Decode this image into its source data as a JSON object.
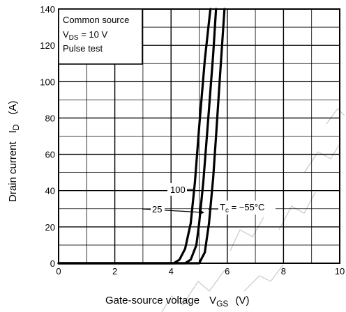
{
  "chart_data": {
    "type": "line",
    "xlabel_main": "Gate-source voltage",
    "xlabel_sym": "V",
    "xlabel_sub": "GS",
    "xlabel_unit": "(V)",
    "ylabel_main": "Drain current",
    "ylabel_sym": "I",
    "ylabel_sub": "D",
    "ylabel_unit": "(A)",
    "xlim": [
      0,
      10
    ],
    "ylim": [
      0,
      140
    ],
    "x_ticks": [
      "0",
      "2",
      "4",
      "6",
      "8",
      "10"
    ],
    "y_ticks": [
      "0",
      "20",
      "40",
      "60",
      "80",
      "100",
      "120",
      "140"
    ],
    "grid": true,
    "conditions": {
      "line1": "Common source",
      "line2_sym": "V",
      "line2_sub": "DS",
      "line2_rest": " = 10 V",
      "line3": "Pulse test"
    },
    "labels": {
      "t100": "100",
      "t25": "25",
      "tc_sym": "T",
      "tc_sub": "c",
      "tc_rest": " = −55°C"
    },
    "series": [
      {
        "name": "100",
        "x": [
          0,
          4.1,
          4.3,
          4.5,
          4.7,
          4.85,
          5.0,
          5.2,
          5.4
        ],
        "y": [
          0,
          0,
          2,
          8,
          22,
          45,
          75,
          112,
          140
        ]
      },
      {
        "name": "25",
        "x": [
          0,
          4.5,
          4.7,
          4.9,
          5.0,
          5.15,
          5.3,
          5.5,
          5.6
        ],
        "y": [
          0,
          0,
          2,
          10,
          22,
          45,
          75,
          115,
          140
        ]
      },
      {
        "name": "−55",
        "x": [
          0,
          5.0,
          5.2,
          5.35,
          5.5,
          5.6,
          5.75,
          5.9
        ],
        "y": [
          0,
          0,
          6,
          22,
          47,
          70,
          105,
          140
        ]
      }
    ]
  }
}
